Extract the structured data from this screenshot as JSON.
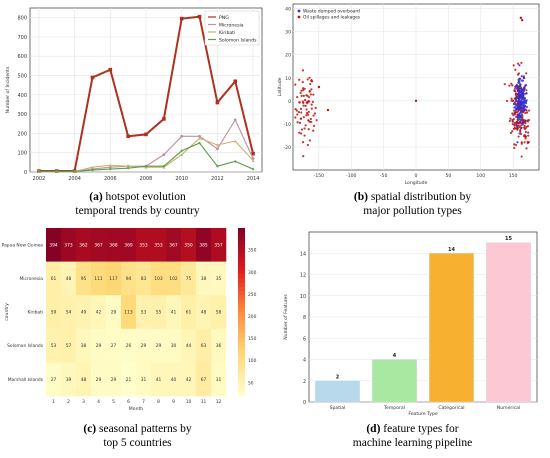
{
  "captions": {
    "a": {
      "tag": "(a)",
      "line1": "hotspot evolution",
      "line2": "temporal trends by country"
    },
    "b": {
      "tag": "(b)",
      "line1": "spatial distribution by",
      "line2": "major pollution types"
    },
    "c": {
      "tag": "(c)",
      "line1": "seasonal patterns by",
      "line2": "top 5 countries"
    },
    "d": {
      "tag": "(d)",
      "line1": "feature types for",
      "line2": "machine learning pipeline"
    }
  },
  "chart_data": [
    {
      "type": "line",
      "panel": "a",
      "ylabel": "Number of Incidents",
      "xlabel": "",
      "x": [
        2002,
        2003,
        2004,
        2005,
        2006,
        2007,
        2008,
        2009,
        2010,
        2011,
        2012,
        2013,
        2014
      ],
      "x_ticks": [
        "2002",
        "2004",
        "2006",
        "2008",
        "2010",
        "2012",
        "2014"
      ],
      "xlim": [
        2001.5,
        2014.5
      ],
      "ylim": [
        0,
        850
      ],
      "y_ticks": [
        0,
        100,
        200,
        300,
        400,
        500,
        600,
        700,
        800
      ],
      "grid": true,
      "legend_position": "top-right",
      "series": [
        {
          "name": "PNG",
          "color": "#b03020",
          "marker": "square",
          "values": [
            5,
            5,
            5,
            490,
            530,
            185,
            195,
            275,
            795,
            805,
            360,
            470,
            95
          ]
        },
        {
          "name": "Micronesia",
          "color": "#c090a0",
          "marker": "circle",
          "values": [
            3,
            3,
            3,
            15,
            25,
            30,
            30,
            90,
            185,
            185,
            120,
            270,
            70
          ]
        },
        {
          "name": "Kiribati",
          "color": "#c8b070",
          "marker": "triangle",
          "values": [
            2,
            2,
            2,
            25,
            35,
            30,
            25,
            25,
            90,
            175,
            140,
            160,
            60
          ]
        },
        {
          "name": "Solomon Islands",
          "color": "#5aa04a",
          "marker": "diamond",
          "values": [
            3,
            3,
            3,
            10,
            15,
            20,
            30,
            30,
            110,
            150,
            30,
            55,
            15
          ]
        }
      ]
    },
    {
      "type": "scatter",
      "panel": "b",
      "xlabel": "Longitude",
      "ylabel": "Latitude",
      "xlim": [
        -190,
        190
      ],
      "ylim": [
        -30,
        42
      ],
      "x_ticks": [
        -150,
        -100,
        -50,
        0,
        50,
        100,
        150
      ],
      "y_ticks": [
        -20,
        -10,
        0,
        10,
        20,
        30,
        40
      ],
      "grid": true,
      "legend_position": "top-left",
      "series": [
        {
          "name": "Waste dumped overboard",
          "color": "#3030d0"
        },
        {
          "name": "Oil spillages and leakages",
          "color": "#c01010"
        }
      ],
      "clusters": [
        {
          "series": 1,
          "cx": -172,
          "cy": -3,
          "sx": 7,
          "sy": 8,
          "n": 60
        },
        {
          "series": 1,
          "cx": -162,
          "cy": -5,
          "sx": 4,
          "sy": 6,
          "n": 20
        },
        {
          "series": 1,
          "cx": 158,
          "cy": -2,
          "sx": 6,
          "sy": 8,
          "n": 170
        },
        {
          "series": 0,
          "cx": 162,
          "cy": -1,
          "sx": 5,
          "sy": 5,
          "n": 170
        },
        {
          "series": 1,
          "cx": 170,
          "cy": -14,
          "sx": 3,
          "sy": 4,
          "n": 25
        }
      ],
      "points": [
        {
          "series": 1,
          "x": 0,
          "y": 0
        },
        {
          "series": 1,
          "x": -150,
          "y": 6
        },
        {
          "series": 1,
          "x": -136,
          "y": -4
        },
        {
          "series": 1,
          "x": 162,
          "y": 36
        },
        {
          "series": 1,
          "x": 164,
          "y": 35
        }
      ]
    },
    {
      "type": "heatmap",
      "panel": "c",
      "xlabel": "Month",
      "ylabel": "country",
      "x_labels": [
        "1",
        "2",
        "3",
        "4",
        "5",
        "6",
        "7",
        "8",
        "9",
        "10",
        "11",
        "12"
      ],
      "y_labels": [
        "Papua New Guinea",
        "Micronesia",
        "Kiribati",
        "Solomon Islands",
        "Marshall Islands"
      ],
      "values": [
        [
          394,
          373,
          362,
          367,
          368,
          369,
          353,
          353,
          367,
          350,
          385,
          357
        ],
        [
          61,
          48,
          95,
          111,
          117,
          94,
          83,
          103,
          102,
          75,
          38,
          35
        ],
        [
          59,
          54,
          49,
          42,
          29,
          113,
          53,
          55,
          41,
          61,
          48,
          58
        ],
        [
          53,
          57,
          38,
          29,
          27,
          26,
          29,
          29,
          30,
          44,
          63,
          36
        ],
        [
          27,
          39,
          48,
          29,
          29,
          21,
          31,
          41,
          40,
          42,
          67,
          31
        ]
      ],
      "colorbar_ticks": [
        50,
        100,
        150,
        200,
        250,
        300,
        350
      ],
      "colorbar_range": [
        20,
        400
      ]
    },
    {
      "type": "bar",
      "panel": "d",
      "xlabel": "Feature Type",
      "ylabel": "Number of Features",
      "categories": [
        "Spatial",
        "Temporal",
        "Categorical",
        "Numerical"
      ],
      "values": [
        2,
        4,
        14,
        15
      ],
      "colors": [
        "#b8d8ec",
        "#a8e8a0",
        "#f8b030",
        "#fcc8d4"
      ],
      "ylim": [
        0,
        16
      ],
      "y_ticks": [
        0,
        2,
        4,
        6,
        8,
        10,
        12,
        14
      ],
      "grid": true
    }
  ]
}
